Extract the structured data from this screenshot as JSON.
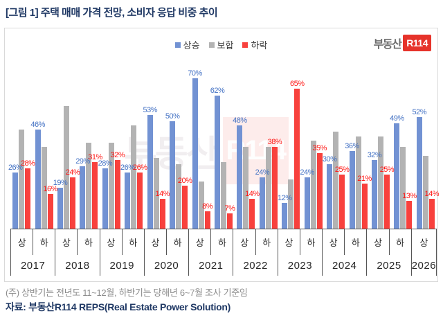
{
  "header": {
    "title": "[그림 1] 주택 매매 가격 전망, 소비자 응답 비중 추이"
  },
  "logo": {
    "prefix": "부동산",
    "badge": "R114"
  },
  "watermark": {
    "prefix": "부동산",
    "badge": "R114"
  },
  "legend": [
    {
      "label": "상승",
      "color": "#7292d3"
    },
    {
      "label": "보합",
      "color": "#b3b3b3"
    },
    {
      "label": "하락",
      "color": "#f8413d"
    }
  ],
  "chart_data": {
    "type": "bar",
    "title": "주택 매매 가격 전망, 소비자 응답 비중 추이",
    "unit": "%",
    "ylim": [
      0,
      70
    ],
    "grid": false,
    "legend_position": "top-center",
    "value_labels_note": "상승/하락 bars labeled; 보합 bars unlabeled; all three sum to 100% per period",
    "x_halves": [
      "상",
      "하",
      "상",
      "하",
      "상",
      "하",
      "상",
      "하",
      "상",
      "하",
      "상",
      "하",
      "상",
      "하",
      "상",
      "하",
      "상",
      "하",
      "상"
    ],
    "x_years": [
      {
        "label": "2017",
        "cols": 2
      },
      {
        "label": "2018",
        "cols": 2
      },
      {
        "label": "2019",
        "cols": 2
      },
      {
        "label": "2020",
        "cols": 2
      },
      {
        "label": "2021",
        "cols": 2
      },
      {
        "label": "2022",
        "cols": 2
      },
      {
        "label": "2023",
        "cols": 2
      },
      {
        "label": "2024",
        "cols": 2
      },
      {
        "label": "2025",
        "cols": 2
      },
      {
        "label": "2026",
        "cols": 1
      }
    ],
    "series": [
      {
        "name": "상승",
        "color": "#7292d3",
        "label_color": "#4472c4",
        "show_labels": true,
        "values": [
          26,
          46,
          19,
          29,
          28,
          26,
          53,
          50,
          70,
          62,
          48,
          24,
          12,
          24,
          30,
          36,
          32,
          49,
          52
        ]
      },
      {
        "name": "보합",
        "color": "#b3b3b3",
        "label_color": "#808080",
        "show_labels": false,
        "values": [
          46,
          38,
          57,
          40,
          40,
          48,
          33,
          30,
          22,
          31,
          38,
          38,
          23,
          41,
          45,
          43,
          43,
          38,
          34
        ]
      },
      {
        "name": "하락",
        "color": "#f8413d",
        "label_color": "#ff1411",
        "show_labels": true,
        "values": [
          28,
          16,
          24,
          31,
          32,
          26,
          14,
          20,
          8,
          7,
          14,
          38,
          65,
          35,
          25,
          21,
          25,
          13,
          14
        ]
      }
    ]
  },
  "footer": {
    "note": "(주) 상반기는 전년도 11~12월, 하반기는 당해년 6~7월 조사 기준임",
    "source": "자료: 부동산R114 REPS(Real Estate Power Solution)"
  }
}
